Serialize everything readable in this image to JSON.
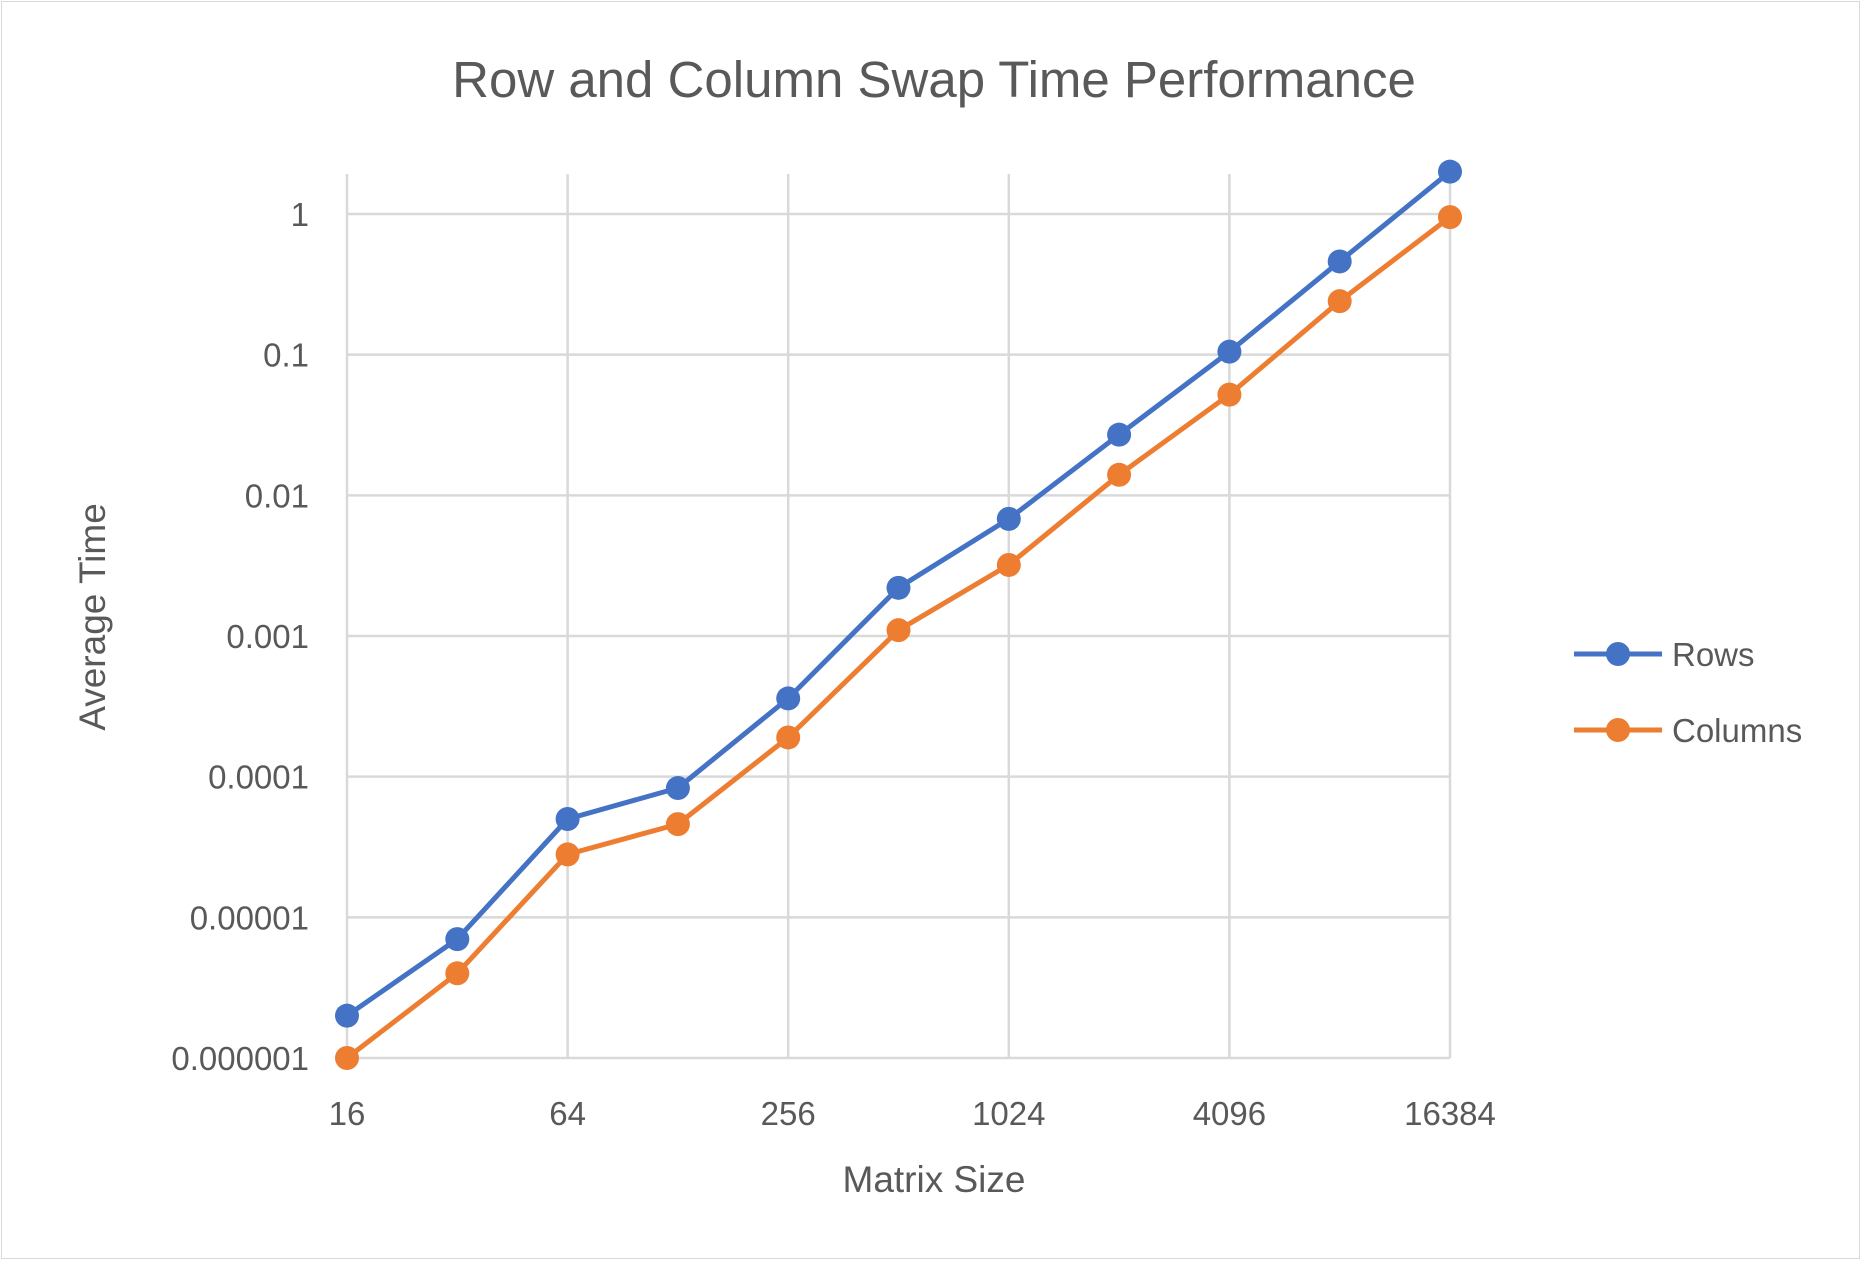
{
  "chart_data": {
    "type": "line",
    "title": "Row and Column Swap Time Performance",
    "xlabel": "Matrix Size",
    "ylabel": "Average Time",
    "x": [
      16,
      32,
      64,
      128,
      256,
      512,
      1024,
      2048,
      4096,
      8192,
      16384
    ],
    "x_scale": "log2",
    "x_ticks": [
      "16",
      "64",
      "256",
      "1024",
      "4096",
      "16384"
    ],
    "y_scale": "log10",
    "ylim": [
      1e-06,
      2
    ],
    "y_ticks": [
      "0.000001",
      "0.00001",
      "0.0001",
      "0.001",
      "0.01",
      "0.1",
      "1"
    ],
    "grid": true,
    "legend_position": "right",
    "series": [
      {
        "name": "Rows",
        "color": "#4472C4",
        "values": [
          2e-06,
          7e-06,
          5e-05,
          8.3e-05,
          0.00036,
          0.0022,
          0.0068,
          0.027,
          0.105,
          0.46,
          2.0
        ]
      },
      {
        "name": "Columns",
        "color": "#ED7D31",
        "values": [
          1e-06,
          4e-06,
          2.8e-05,
          4.6e-05,
          0.00019,
          0.0011,
          0.0032,
          0.014,
          0.052,
          0.24,
          0.95
        ]
      }
    ]
  }
}
